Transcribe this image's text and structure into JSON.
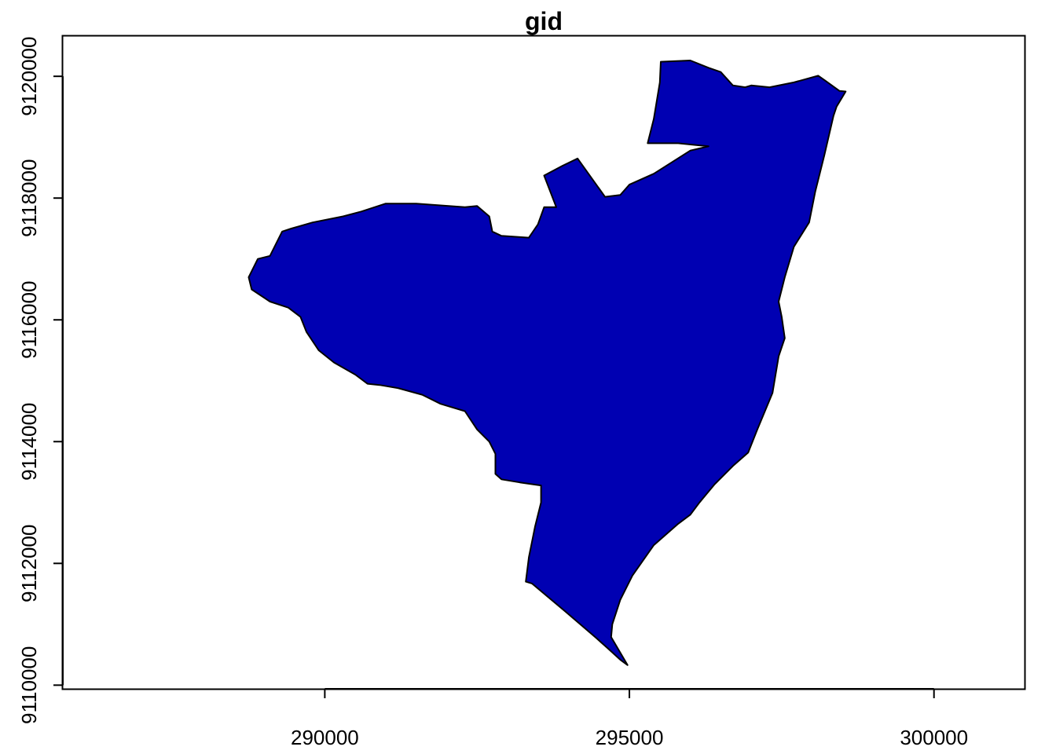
{
  "chart_data": {
    "type": "map",
    "title": "gid",
    "xlabel": "",
    "ylabel": "",
    "xlim": [
      285700,
      301500
    ],
    "ylim": [
      9109940,
      9120660
    ],
    "x_ticks": [
      290000,
      295000,
      300000
    ],
    "x_tick_labels": [
      "290000",
      "295000",
      "300000"
    ],
    "y_ticks": [
      9110000,
      9112000,
      9114000,
      9116000,
      9118000,
      9120000
    ],
    "y_tick_labels": [
      "9110000",
      "9112000",
      "9114000",
      "9116000",
      "9118000",
      "9120000"
    ],
    "grid": false,
    "legend": "none",
    "fill_color": "#0000B2",
    "border_color": "#000000",
    "polygon": [
      [
        295515,
        9120240
      ],
      [
        296000,
        9120260
      ],
      [
        296300,
        9120140
      ],
      [
        296500,
        9120070
      ],
      [
        296700,
        9119850
      ],
      [
        296900,
        9119820
      ],
      [
        297000,
        9119850
      ],
      [
        297300,
        9119820
      ],
      [
        297700,
        9119900
      ],
      [
        298100,
        9120010
      ],
      [
        298200,
        9119940
      ],
      [
        298450,
        9119760
      ],
      [
        298550,
        9119750
      ],
      [
        298400,
        9119500
      ],
      [
        298350,
        9119350
      ],
      [
        298200,
        9118700
      ],
      [
        298050,
        9118100
      ],
      [
        297950,
        9117600
      ],
      [
        297700,
        9117200
      ],
      [
        297550,
        9116700
      ],
      [
        297450,
        9116300
      ],
      [
        297500,
        9116050
      ],
      [
        297550,
        9115700
      ],
      [
        297450,
        9115400
      ],
      [
        297350,
        9114800
      ],
      [
        297100,
        9114200
      ],
      [
        296950,
        9113820
      ],
      [
        296700,
        9113600
      ],
      [
        296400,
        9113300
      ],
      [
        296150,
        9113000
      ],
      [
        296000,
        9112800
      ],
      [
        295800,
        9112650
      ],
      [
        295400,
        9112300
      ],
      [
        295050,
        9111800
      ],
      [
        294850,
        9111400
      ],
      [
        294720,
        9111000
      ],
      [
        294700,
        9110790
      ],
      [
        294970,
        9110330
      ],
      [
        294860,
        9110410
      ],
      [
        294650,
        9110600
      ],
      [
        294450,
        9110780
      ],
      [
        293950,
        9111210
      ],
      [
        293400,
        9111670
      ],
      [
        293300,
        9111700
      ],
      [
        293350,
        9112100
      ],
      [
        293450,
        9112600
      ],
      [
        293550,
        9113000
      ],
      [
        293550,
        9113280
      ],
      [
        293200,
        9113330
      ],
      [
        292900,
        9113380
      ],
      [
        292800,
        9113470
      ],
      [
        292800,
        9113800
      ],
      [
        292700,
        9114000
      ],
      [
        292500,
        9114200
      ],
      [
        292300,
        9114500
      ],
      [
        291900,
        9114620
      ],
      [
        291600,
        9114770
      ],
      [
        291200,
        9114880
      ],
      [
        290900,
        9114930
      ],
      [
        290700,
        9114950
      ],
      [
        290500,
        9115100
      ],
      [
        290150,
        9115300
      ],
      [
        289900,
        9115500
      ],
      [
        289700,
        9115800
      ],
      [
        289600,
        9116050
      ],
      [
        289400,
        9116200
      ],
      [
        289100,
        9116300
      ],
      [
        288800,
        9116500
      ],
      [
        288750,
        9116700
      ],
      [
        288900,
        9117000
      ],
      [
        289100,
        9117050
      ],
      [
        289300,
        9117450
      ],
      [
        289450,
        9117500
      ],
      [
        289800,
        9117600
      ],
      [
        290300,
        9117700
      ],
      [
        290600,
        9117780
      ],
      [
        291000,
        9117910
      ],
      [
        291500,
        9117910
      ],
      [
        292300,
        9117850
      ],
      [
        292500,
        9117870
      ],
      [
        292700,
        9117700
      ],
      [
        292750,
        9117450
      ],
      [
        292900,
        9117380
      ],
      [
        293350,
        9117350
      ],
      [
        293500,
        9117570
      ],
      [
        293600,
        9117850
      ],
      [
        293800,
        9117850
      ],
      [
        293600,
        9118370
      ],
      [
        293900,
        9118530
      ],
      [
        294150,
        9118650
      ],
      [
        294400,
        9118300
      ],
      [
        294600,
        9118020
      ],
      [
        294850,
        9118050
      ],
      [
        295000,
        9118220
      ],
      [
        295400,
        9118400
      ],
      [
        296000,
        9118780
      ],
      [
        296300,
        9118850
      ],
      [
        295800,
        9118900
      ],
      [
        295300,
        9118900
      ],
      [
        295400,
        9119300
      ],
      [
        295500,
        9119900
      ]
    ]
  }
}
